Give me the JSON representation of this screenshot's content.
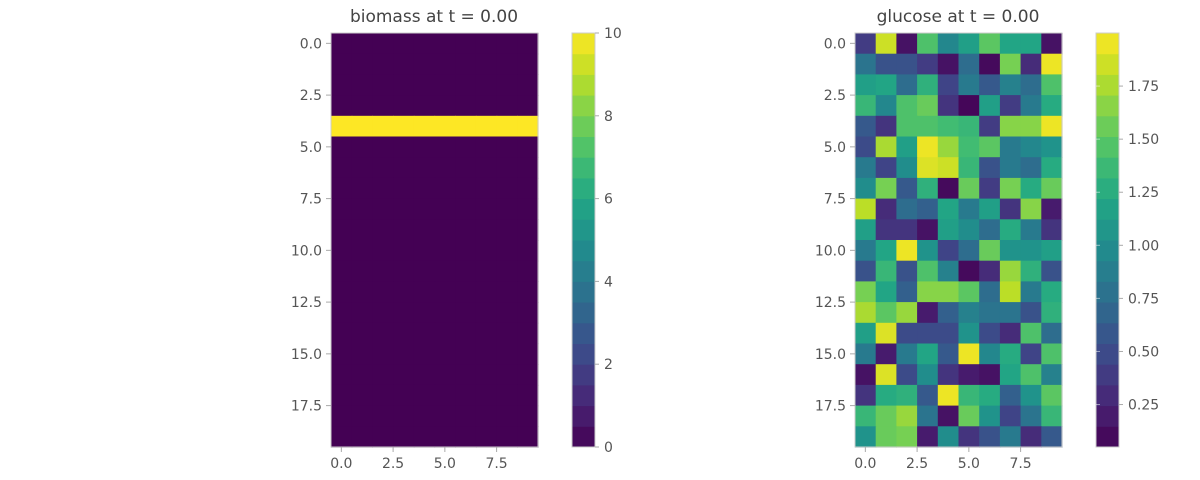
{
  "chart_data": [
    {
      "type": "heatmap",
      "title": "biomass at t = 0.00",
      "colormap": "viridis",
      "grid": false,
      "rows": 20,
      "cols": 10,
      "xticks": [
        "0.0",
        "2.5",
        "5.0",
        "7.5"
      ],
      "yticks": [
        "0.0",
        "2.5",
        "5.0",
        "7.5",
        "10.0",
        "12.5",
        "15.0",
        "17.5"
      ],
      "vmin": 0,
      "vmax": 10,
      "colorbar_ticks": [
        "0",
        "2",
        "4",
        "6",
        "8",
        "10"
      ],
      "values": [
        [
          0,
          0,
          0,
          0,
          0,
          0,
          0,
          0,
          0,
          0
        ],
        [
          0,
          0,
          0,
          0,
          0,
          0,
          0,
          0,
          0,
          0
        ],
        [
          0,
          0,
          0,
          0,
          0,
          0,
          0,
          0,
          0,
          0
        ],
        [
          0,
          0,
          0,
          0,
          0,
          0,
          0,
          0,
          0,
          0
        ],
        [
          10,
          10,
          10,
          10,
          10,
          10,
          10,
          10,
          10,
          10
        ],
        [
          0,
          0,
          0,
          0,
          0,
          0,
          0,
          0,
          0,
          0
        ],
        [
          0,
          0,
          0,
          0,
          0,
          0,
          0,
          0,
          0,
          0
        ],
        [
          0,
          0,
          0,
          0,
          0,
          0,
          0,
          0,
          0,
          0
        ],
        [
          0,
          0,
          0,
          0,
          0,
          0,
          0,
          0,
          0,
          0
        ],
        [
          0,
          0,
          0,
          0,
          0,
          0,
          0,
          0,
          0,
          0
        ],
        [
          0,
          0,
          0,
          0,
          0,
          0,
          0,
          0,
          0,
          0
        ],
        [
          0,
          0,
          0,
          0,
          0,
          0,
          0,
          0,
          0,
          0
        ],
        [
          0,
          0,
          0,
          0,
          0,
          0,
          0,
          0,
          0,
          0
        ],
        [
          0,
          0,
          0,
          0,
          0,
          0,
          0,
          0,
          0,
          0
        ],
        [
          0,
          0,
          0,
          0,
          0,
          0,
          0,
          0,
          0,
          0
        ],
        [
          0,
          0,
          0,
          0,
          0,
          0,
          0,
          0,
          0,
          0
        ],
        [
          0,
          0,
          0,
          0,
          0,
          0,
          0,
          0,
          0,
          0
        ],
        [
          0,
          0,
          0,
          0,
          0,
          0,
          0,
          0,
          0,
          0
        ],
        [
          0,
          0,
          0,
          0,
          0,
          0,
          0,
          0,
          0,
          0
        ],
        [
          0,
          0,
          0,
          0,
          0,
          0,
          0,
          0,
          0,
          0
        ]
      ]
    },
    {
      "type": "heatmap",
      "title": "glucose at t = 0.00",
      "colormap": "viridis",
      "grid": false,
      "rows": 20,
      "cols": 10,
      "xticks": [
        "0.0",
        "2.5",
        "5.0",
        "7.5"
      ],
      "yticks": [
        "0.0",
        "2.5",
        "5.0",
        "7.5",
        "10.0",
        "12.5",
        "15.0",
        "17.5"
      ],
      "vmin": 0.05,
      "vmax": 2.0,
      "colorbar_ticks": [
        "0.25",
        "0.50",
        "0.75",
        "1.00",
        "1.25",
        "1.50",
        "1.75"
      ],
      "values": [
        [
          0.4,
          1.85,
          0.15,
          1.45,
          0.95,
          1.15,
          1.5,
          1.2,
          1.2,
          0.15
        ],
        [
          0.8,
          0.55,
          0.55,
          0.4,
          0.15,
          0.75,
          0.1,
          1.6,
          0.3,
          1.95
        ],
        [
          1.15,
          1.2,
          0.75,
          1.3,
          0.45,
          0.85,
          0.6,
          0.9,
          0.75,
          1.45
        ],
        [
          1.35,
          0.95,
          1.45,
          1.55,
          0.35,
          0.08,
          1.15,
          0.4,
          0.85,
          1.25
        ],
        [
          0.6,
          0.35,
          1.45,
          1.45,
          1.4,
          1.35,
          0.4,
          1.65,
          1.65,
          1.95
        ],
        [
          0.5,
          1.75,
          1.15,
          1.95,
          1.7,
          1.4,
          1.5,
          0.85,
          0.95,
          1.05
        ],
        [
          0.85,
          0.45,
          1.0,
          1.9,
          1.85,
          1.35,
          0.55,
          0.85,
          0.75,
          1.25
        ],
        [
          1.0,
          1.6,
          0.6,
          1.3,
          0.1,
          1.55,
          0.4,
          1.6,
          1.25,
          1.55
        ],
        [
          1.8,
          0.3,
          0.75,
          0.65,
          1.2,
          0.85,
          1.15,
          0.35,
          1.65,
          0.2
        ],
        [
          1.15,
          0.35,
          0.35,
          0.15,
          1.15,
          1.0,
          0.75,
          1.25,
          0.85,
          0.35
        ],
        [
          0.85,
          1.2,
          1.95,
          1.05,
          0.45,
          0.75,
          1.55,
          1.05,
          1.05,
          1.15
        ],
        [
          0.55,
          1.35,
          0.55,
          1.45,
          0.9,
          0.1,
          0.3,
          1.7,
          1.3,
          0.55
        ],
        [
          1.6,
          1.2,
          0.65,
          1.65,
          1.65,
          1.5,
          0.75,
          1.8,
          0.85,
          1.25
        ],
        [
          1.75,
          1.5,
          1.7,
          0.2,
          0.65,
          0.9,
          0.8,
          0.8,
          0.55,
          1.3
        ],
        [
          1.15,
          1.9,
          0.5,
          0.5,
          0.5,
          1.05,
          0.5,
          0.3,
          1.45,
          0.75
        ],
        [
          0.85,
          0.2,
          0.85,
          1.2,
          0.6,
          1.95,
          0.95,
          1.25,
          0.45,
          1.45
        ],
        [
          0.15,
          1.9,
          0.5,
          1.0,
          0.35,
          0.2,
          0.15,
          1.2,
          1.45,
          0.9
        ],
        [
          0.35,
          1.25,
          1.3,
          0.6,
          1.95,
          1.35,
          1.25,
          0.65,
          1.05,
          1.5
        ],
        [
          1.35,
          1.55,
          1.7,
          0.8,
          0.15,
          1.55,
          1.05,
          0.45,
          0.8,
          1.35
        ],
        [
          1.05,
          1.55,
          1.6,
          0.2,
          1.0,
          0.35,
          0.55,
          0.85,
          0.3,
          0.6
        ]
      ]
    }
  ]
}
